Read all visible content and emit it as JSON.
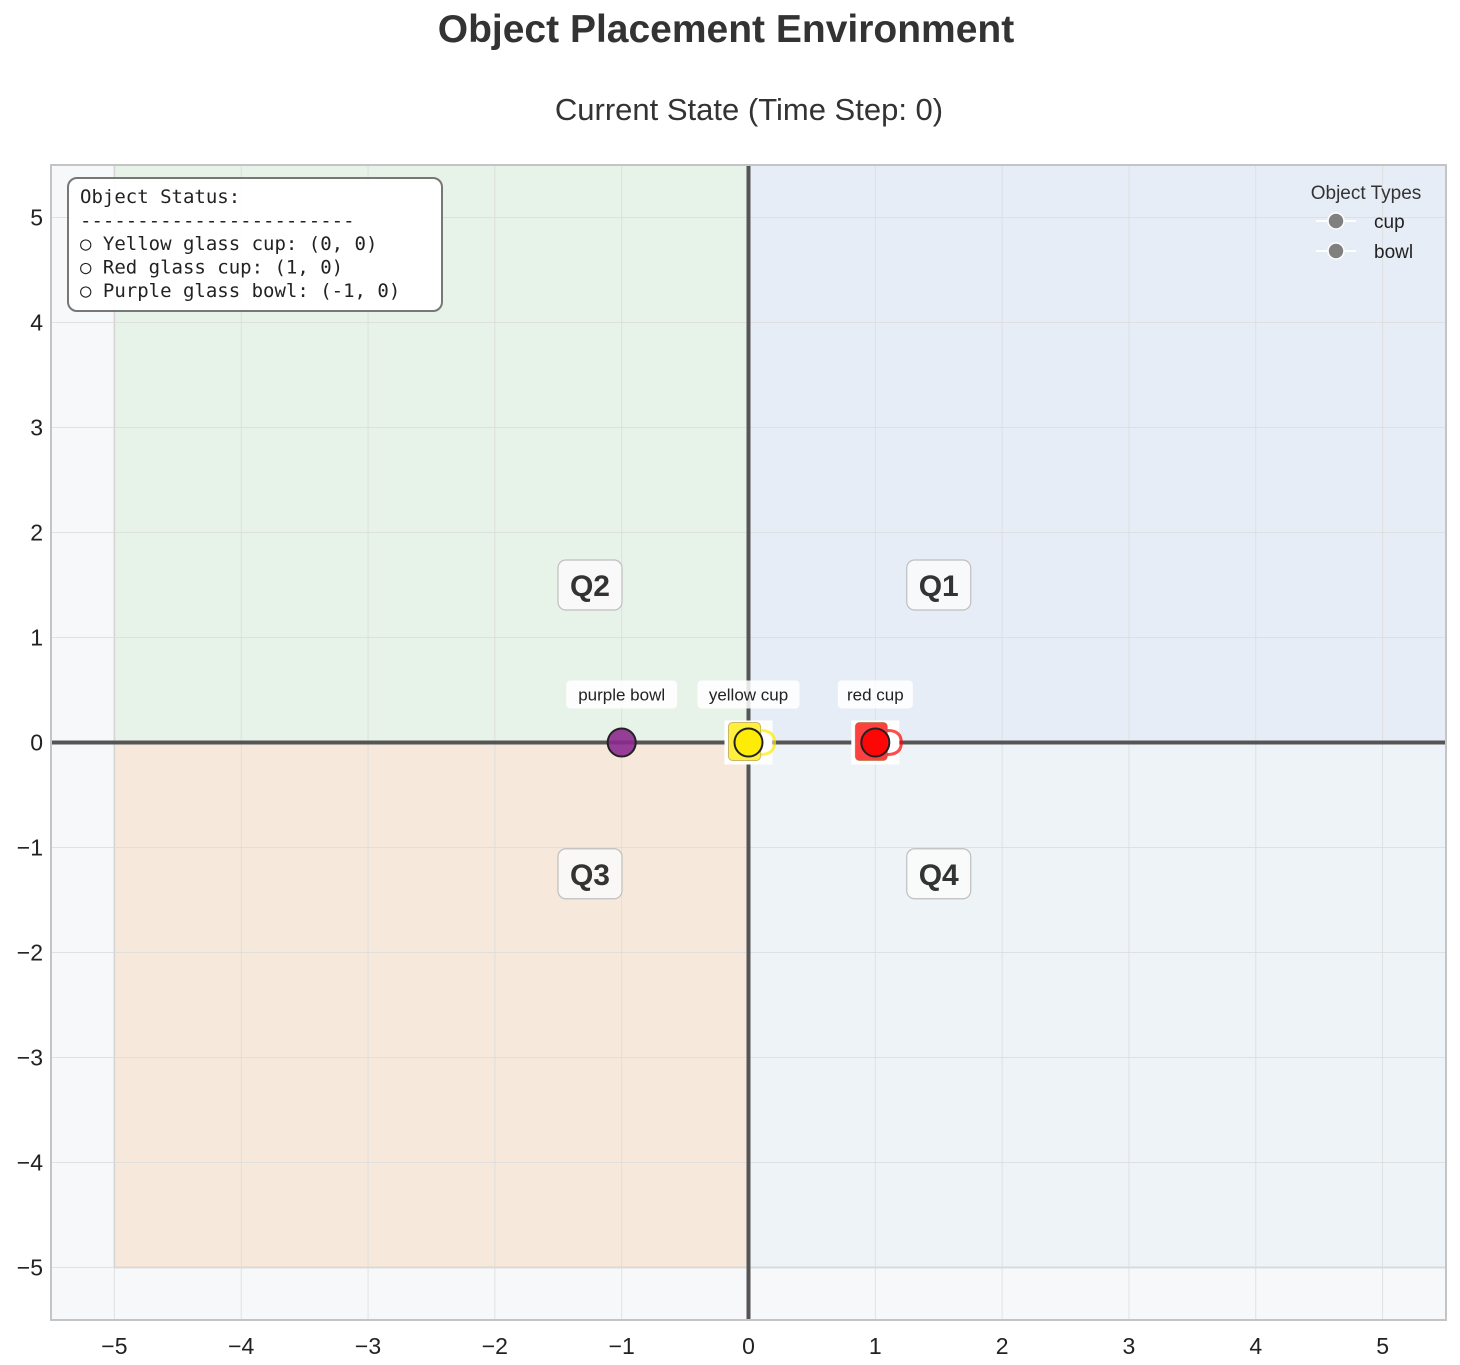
{
  "title": "Object Placement Environment",
  "chart_data": {
    "type": "scatter",
    "title": "Current State (Time Step: 0)",
    "xlabel": "",
    "ylabel": "",
    "xlim": [
      -5.5,
      5.5
    ],
    "ylim": [
      -5.5,
      5.5
    ],
    "xticks": [
      -5,
      -4,
      -3,
      -2,
      -1,
      0,
      1,
      2,
      3,
      4,
      5
    ],
    "yticks": [
      -5,
      -4,
      -3,
      -2,
      -1,
      0,
      1,
      2,
      3,
      4,
      5
    ],
    "grid": true,
    "quadrants": [
      {
        "label": "Q1",
        "x": 1.5,
        "y": 1.5,
        "x_range": [
          0,
          5.5
        ],
        "y_range": [
          0,
          5.5
        ],
        "color": "#e7edf6"
      },
      {
        "label": "Q2",
        "x": -1.25,
        "y": 1.5,
        "x_range": [
          -5,
          0
        ],
        "y_range": [
          0,
          5.5
        ],
        "color": "#e7f2e8"
      },
      {
        "label": "Q3",
        "x": -1.25,
        "y": -1.25,
        "x_range": [
          -5,
          0
        ],
        "y_range": [
          -5,
          0
        ],
        "color": "#f7e8dc"
      },
      {
        "label": "Q4",
        "x": 1.5,
        "y": -1.25,
        "x_range": [
          0,
          5.5
        ],
        "y_range": [
          -5,
          0
        ],
        "color": "#eef3f8"
      }
    ],
    "series": [
      {
        "name": "yellow cup",
        "type": "cup",
        "x": 0,
        "y": 0,
        "color": "#ffeb00",
        "icon": "mug-icon"
      },
      {
        "name": "red cup",
        "type": "cup",
        "x": 1,
        "y": 0,
        "color": "#ff0000",
        "icon": "mug-icon"
      },
      {
        "name": "purple bowl",
        "type": "bowl",
        "x": -1,
        "y": 0,
        "color": "#8b2a8f",
        "icon": "bowl-icon"
      }
    ],
    "status_box": {
      "title": "Object Status:",
      "separator": "------------------------",
      "lines": [
        "○ Yellow glass cup: (0, 0)",
        "○ Red glass cup: (1, 0)",
        "○ Purple glass bowl: (-1, 0)"
      ],
      "position": "top-left"
    },
    "legend": {
      "title": "Object Types",
      "position": "top-right",
      "entries": [
        {
          "label": "cup",
          "color": "#808080"
        },
        {
          "label": "bowl",
          "color": "#808080"
        }
      ]
    }
  }
}
